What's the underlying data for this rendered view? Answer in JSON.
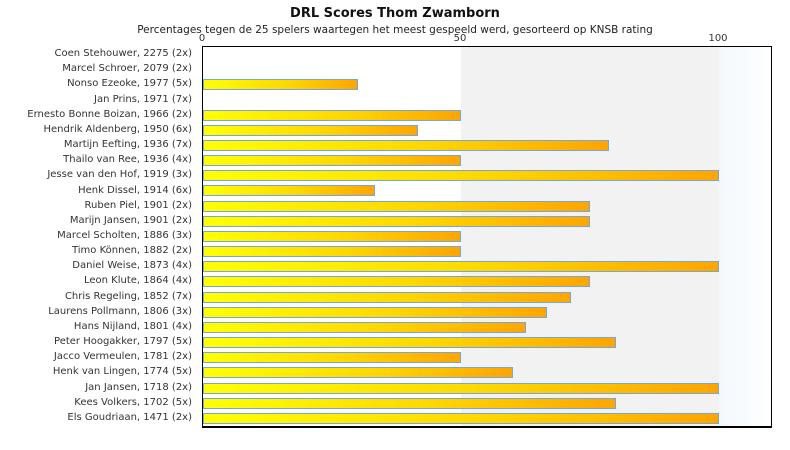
{
  "chart_data": {
    "type": "bar",
    "orientation": "horizontal",
    "title": "DRL Scores Thom Zwamborn",
    "subtitle": "Percentages tegen de 25 spelers waartegen het meest gespeeld werd, gesorteerd op KNSB rating",
    "xlabel": "",
    "ylabel": "",
    "xlim": [
      0,
      110
    ],
    "xticks": [
      0,
      50,
      100
    ],
    "grid": false,
    "legend": null,
    "categories": [
      "Coen Stehouwer, 2275 (2x)",
      "Marcel Schroer, 2079 (2x)",
      "Nonso Ezeoke, 1977 (5x)",
      "Jan Prins, 1971 (7x)",
      "Ernesto Bonne Boizan, 1966 (2x)",
      "Hendrik Aldenberg, 1950 (6x)",
      "Martijn Eefting, 1936 (7x)",
      "Thailo van Ree, 1936 (4x)",
      "Jesse van den Hof, 1919 (3x)",
      "Henk Dissel, 1914 (6x)",
      "Ruben Piel, 1901 (2x)",
      "Marijn Jansen, 1901 (2x)",
      "Marcel Scholten, 1886 (3x)",
      "Timo Können, 1882 (2x)",
      "Daniel Weise, 1873 (4x)",
      "Leon Klute, 1864 (4x)",
      "Chris Regeling, 1852 (7x)",
      "Laurens Pollmann, 1806 (3x)",
      "Hans Nijland, 1801 (4x)",
      "Peter Hoogakker, 1797 (5x)",
      "Jacco Vermeulen, 1781 (2x)",
      "Henk van Lingen, 1774 (5x)",
      "Jan Jansen, 1718 (2x)",
      "Kees Volkers, 1702 (5x)",
      "Els Goudriaan, 1471 (2x)"
    ],
    "values": [
      0,
      0,
      30,
      0,
      50,
      41.7,
      78.6,
      50,
      100,
      33.3,
      75,
      75,
      50,
      50,
      100,
      75,
      71.4,
      66.7,
      62.5,
      80,
      50,
      60,
      100,
      80,
      100
    ]
  },
  "colors": {
    "bar_gradient_start": "#ffff05",
    "bar_gradient_end": "#ffa500",
    "bar_border": "#74a7dc",
    "band_50_100": "#f2f2f2",
    "band_overflow": "#f3f8fc",
    "plot_border": "#000000",
    "text": "#333333"
  }
}
